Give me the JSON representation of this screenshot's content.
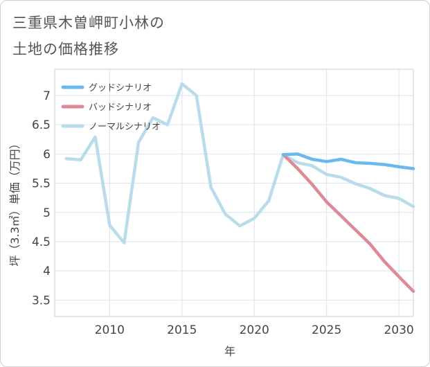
{
  "title_line1": "三重県木曽岬町小林の",
  "title_line2": "土地の価格推移",
  "chart_data": {
    "type": "line",
    "xlabel": "年",
    "ylabel": "坪（3.3㎡）単価（万円）",
    "xlim": [
      2006.2,
      2031
    ],
    "ylim": [
      3.22,
      7.45
    ],
    "x_ticks": [
      2010,
      2015,
      2020,
      2025,
      2030
    ],
    "y_ticks": [
      3.5,
      4,
      4.5,
      5,
      5.5,
      6,
      6.5,
      7
    ],
    "legend_position": "top-left",
    "series": [
      {
        "name": "グッドシナリオ",
        "color": "#6bb8ee",
        "x": [
          2022,
          2023,
          2024,
          2025,
          2026,
          2027,
          2028,
          2029,
          2030,
          2031
        ],
        "y": [
          5.99,
          6.0,
          5.91,
          5.87,
          5.91,
          5.85,
          5.84,
          5.82,
          5.78,
          5.75
        ]
      },
      {
        "name": "バッドシナリオ",
        "color": "#dd8a95",
        "x": [
          2022,
          2023,
          2024,
          2025,
          2026,
          2027,
          2028,
          2029,
          2030,
          2031
        ],
        "y": [
          5.99,
          5.75,
          5.48,
          5.18,
          4.94,
          4.7,
          4.46,
          4.16,
          3.9,
          3.65
        ]
      },
      {
        "name": "ノーマルシナリオ",
        "color": "#b8dcea",
        "x": [
          2007,
          2008,
          2009,
          2010,
          2011,
          2012,
          2013,
          2014,
          2015,
          2016,
          2017,
          2018,
          2019,
          2020,
          2021,
          2022,
          2023,
          2024,
          2025,
          2026,
          2027,
          2028,
          2029,
          2030,
          2031
        ],
        "y": [
          5.92,
          5.9,
          6.29,
          4.78,
          4.48,
          6.2,
          6.62,
          6.5,
          7.2,
          7.0,
          5.43,
          4.97,
          4.77,
          4.9,
          5.2,
          5.99,
          5.85,
          5.8,
          5.65,
          5.6,
          5.49,
          5.41,
          5.29,
          5.24,
          5.1
        ]
      }
    ]
  }
}
